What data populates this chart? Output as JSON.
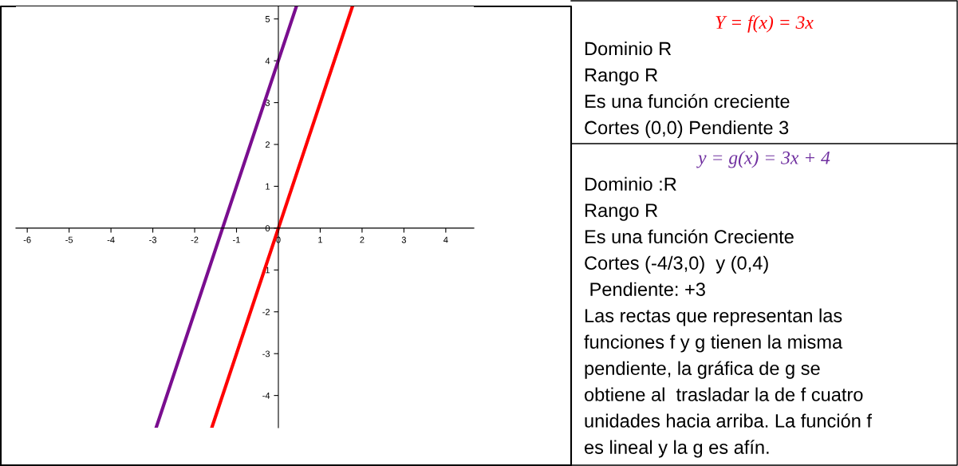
{
  "chart_data": [
    {
      "type": "line",
      "xlim": [
        -6.27,
        4.67
      ],
      "ylim": [
        -4.77,
        5.3
      ],
      "xticks": [
        -6,
        -5,
        -4,
        -3,
        -2,
        -1,
        0,
        1,
        2,
        3,
        4
      ],
      "yticks": [
        -4,
        -3,
        -2,
        -1,
        0,
        1,
        2,
        3,
        4,
        5
      ],
      "grid": false,
      "marker": "none",
      "line_style": "solid",
      "series": [
        {
          "color": "#ff0000",
          "x": [
            -1.59,
            1.77
          ],
          "values": [
            -4.77,
            5.3
          ]
        },
        {
          "color": "#7a0e8f",
          "x": [
            -2.92,
            0.43
          ],
          "values": [
            -4.77,
            5.3
          ]
        }
      ]
    },
    {
      "type": "other",
      "title": "Y = f(x) = 3x",
      "color": "#ff0000",
      "annotations": [
        "Dominio R",
        "Rango R",
        "Es una función creciente",
        "Cortes (0,0) Pendiente 3"
      ]
    },
    {
      "type": "other",
      "title": "y = g(x) = 3x + 4",
      "color": "#7030a0",
      "annotations": [
        "Dominio :R",
        "Rango R",
        "Es una función Creciente",
        "Cortes (-4/3,0)  y (0,4)",
        " Pendiente: +3",
        "Las rectas que representan las",
        "funciones f y g tienen la misma",
        "pendiente, la gráfica de g se",
        "obtiene al  trasladar la de f cuatro",
        "unidades hacia arriba. La función f",
        "es lineal y la g es afín."
      ]
    }
  ]
}
